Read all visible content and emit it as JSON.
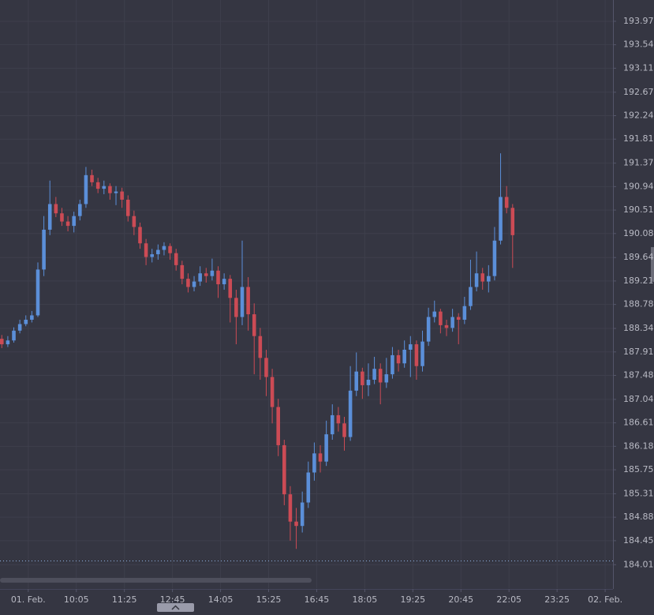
{
  "chart_data": {
    "type": "candlestick",
    "up_color": "#5b8fd9",
    "down_color": "#cc4b55",
    "grid": true,
    "xlim": [
      -0.3,
      101.7
    ],
    "ylim": [
      183.58,
      194.36
    ],
    "yticks": [
      193.97,
      193.54,
      193.11,
      192.67,
      192.24,
      191.81,
      191.37,
      190.94,
      190.51,
      190.08,
      189.64,
      189.21,
      188.78,
      188.34,
      187.91,
      187.48,
      187.04,
      186.61,
      186.18,
      185.75,
      185.31,
      184.88,
      184.45,
      184.01
    ],
    "xticks": [
      {
        "value": 4.4,
        "label": "01. Feb."
      },
      {
        "value": 12.4,
        "label": "10:05"
      },
      {
        "value": 20.4,
        "label": "11:25"
      },
      {
        "value": 28.4,
        "label": "12:45"
      },
      {
        "value": 36.4,
        "label": "14:05"
      },
      {
        "value": 44.4,
        "label": "15:25"
      },
      {
        "value": 52.4,
        "label": "16:45"
      },
      {
        "value": 60.4,
        "label": "18:05"
      },
      {
        "value": 68.4,
        "label": "19:25"
      },
      {
        "value": 76.4,
        "label": "20:45"
      },
      {
        "value": 84.4,
        "label": "22:05"
      },
      {
        "value": 92.4,
        "label": "23:25"
      },
      {
        "value": 100.4,
        "label": "02. Feb."
      }
    ],
    "reference_line": 184.08,
    "candles": [
      [
        188.15,
        188.22,
        187.98,
        188.05
      ],
      [
        188.05,
        188.2,
        188.0,
        188.12
      ],
      [
        188.12,
        188.36,
        188.08,
        188.3
      ],
      [
        188.3,
        188.5,
        188.25,
        188.42
      ],
      [
        188.42,
        188.58,
        188.38,
        188.5
      ],
      [
        188.5,
        188.66,
        188.45,
        188.58
      ],
      [
        188.58,
        189.55,
        188.55,
        189.42
      ],
      [
        189.42,
        190.4,
        189.3,
        190.15
      ],
      [
        190.15,
        191.05,
        190.05,
        190.62
      ],
      [
        190.62,
        190.75,
        190.38,
        190.45
      ],
      [
        190.45,
        190.55,
        190.22,
        190.3
      ],
      [
        190.3,
        190.4,
        190.12,
        190.22
      ],
      [
        190.22,
        190.48,
        190.1,
        190.4
      ],
      [
        190.4,
        190.7,
        190.32,
        190.62
      ],
      [
        190.62,
        191.3,
        190.55,
        191.15
      ],
      [
        191.15,
        191.25,
        190.95,
        191.02
      ],
      [
        191.02,
        191.1,
        190.82,
        190.9
      ],
      [
        190.9,
        191.05,
        190.8,
        190.95
      ],
      [
        190.95,
        191.0,
        190.7,
        190.82
      ],
      [
        190.82,
        190.95,
        190.6,
        190.85
      ],
      [
        190.85,
        190.92,
        190.55,
        190.7
      ],
      [
        190.7,
        190.78,
        190.3,
        190.4
      ],
      [
        190.4,
        190.5,
        190.05,
        190.2
      ],
      [
        190.2,
        190.28,
        189.8,
        189.9
      ],
      [
        189.9,
        189.98,
        189.5,
        189.65
      ],
      [
        189.65,
        189.8,
        189.55,
        189.7
      ],
      [
        189.7,
        189.88,
        189.6,
        189.78
      ],
      [
        189.78,
        189.92,
        189.68,
        189.85
      ],
      [
        189.85,
        189.9,
        189.6,
        189.72
      ],
      [
        189.72,
        189.8,
        189.4,
        189.5
      ],
      [
        189.5,
        189.58,
        189.15,
        189.25
      ],
      [
        189.25,
        189.35,
        189.0,
        189.1
      ],
      [
        189.1,
        189.3,
        189.02,
        189.2
      ],
      [
        189.2,
        189.48,
        189.12,
        189.35
      ],
      [
        189.35,
        189.45,
        189.18,
        189.3
      ],
      [
        189.3,
        189.62,
        189.22,
        189.4
      ],
      [
        189.4,
        189.48,
        188.9,
        189.15
      ],
      [
        189.15,
        189.35,
        189.05,
        189.25
      ],
      [
        189.25,
        189.32,
        188.45,
        188.9
      ],
      [
        188.9,
        189.05,
        188.05,
        188.55
      ],
      [
        188.55,
        189.95,
        188.4,
        189.1
      ],
      [
        189.1,
        189.28,
        188.3,
        188.6
      ],
      [
        188.6,
        188.8,
        187.5,
        188.2
      ],
      [
        188.2,
        188.35,
        187.4,
        187.8
      ],
      [
        187.8,
        187.95,
        187.1,
        187.45
      ],
      [
        187.45,
        187.6,
        186.6,
        186.9
      ],
      [
        186.9,
        187.05,
        186.0,
        186.2
      ],
      [
        186.2,
        186.3,
        185.1,
        185.3
      ],
      [
        185.3,
        185.45,
        184.45,
        184.8
      ],
      [
        184.8,
        185.05,
        184.3,
        184.72
      ],
      [
        184.72,
        185.35,
        184.6,
        185.15
      ],
      [
        185.15,
        185.9,
        185.05,
        185.7
      ],
      [
        185.7,
        186.25,
        185.55,
        186.05
      ],
      [
        186.05,
        186.2,
        185.7,
        185.9
      ],
      [
        185.9,
        186.65,
        185.82,
        186.4
      ],
      [
        186.4,
        186.95,
        186.3,
        186.75
      ],
      [
        186.75,
        186.9,
        186.45,
        186.6
      ],
      [
        186.6,
        186.72,
        186.1,
        186.35
      ],
      [
        186.35,
        187.65,
        186.28,
        187.2
      ],
      [
        187.2,
        187.9,
        187.1,
        187.55
      ],
      [
        187.55,
        187.62,
        187.05,
        187.3
      ],
      [
        187.3,
        187.7,
        187.1,
        187.4
      ],
      [
        187.4,
        187.82,
        187.32,
        187.6
      ],
      [
        187.6,
        187.7,
        186.95,
        187.35
      ],
      [
        187.35,
        187.8,
        187.25,
        187.5
      ],
      [
        187.5,
        188.0,
        187.42,
        187.85
      ],
      [
        187.85,
        187.95,
        187.55,
        187.7
      ],
      [
        187.7,
        188.12,
        187.62,
        187.95
      ],
      [
        187.95,
        188.2,
        187.45,
        188.05
      ],
      [
        188.05,
        188.12,
        187.4,
        187.65
      ],
      [
        187.65,
        188.3,
        187.55,
        188.1
      ],
      [
        188.1,
        188.72,
        188.02,
        188.55
      ],
      [
        188.55,
        188.85,
        188.45,
        188.65
      ],
      [
        188.65,
        188.7,
        188.25,
        188.4
      ],
      [
        188.4,
        188.5,
        188.2,
        188.35
      ],
      [
        188.35,
        188.7,
        188.28,
        188.55
      ],
      [
        188.55,
        188.62,
        188.05,
        188.5
      ],
      [
        188.5,
        188.92,
        188.42,
        188.75
      ],
      [
        188.75,
        189.6,
        188.68,
        189.1
      ],
      [
        189.1,
        189.75,
        189.02,
        189.35
      ],
      [
        189.35,
        189.45,
        189.05,
        189.2
      ],
      [
        189.2,
        189.5,
        189.0,
        189.3
      ],
      [
        189.3,
        190.2,
        189.22,
        189.95
      ],
      [
        189.95,
        191.55,
        189.88,
        190.75
      ],
      [
        190.75,
        190.95,
        190.45,
        190.55
      ],
      [
        190.55,
        190.62,
        189.45,
        190.05
      ]
    ]
  }
}
